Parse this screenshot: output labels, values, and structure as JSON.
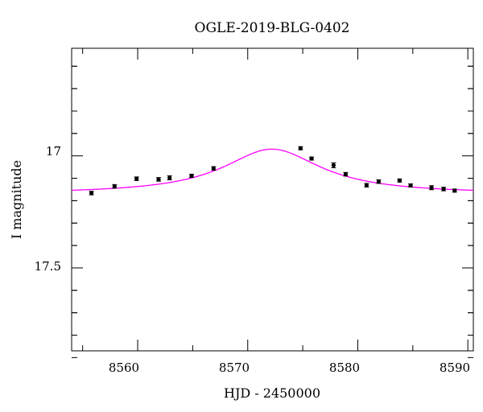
{
  "chart_data": {
    "type": "scatter",
    "title": "OGLE-2019-BLG-0402",
    "xlabel": "HJD - 2450000",
    "ylabel": "I magnitude",
    "xlim": [
      8554,
      8590.5
    ],
    "ylim": [
      17.87,
      16.52
    ],
    "y_inverted": true,
    "x_ticks": [
      "8560",
      "8570",
      "8580",
      "8590"
    ],
    "y_ticks": [
      "17",
      "17.5"
    ],
    "grid": false,
    "model_color": "#ff00ff",
    "point_color": "#000000",
    "model_curve": {
      "name": "",
      "t0": 8572.2,
      "peak_mag": 16.97,
      "baseline_mag": 17.17,
      "tau": 5.2
    },
    "points": [
      {
        "x": 8555.8,
        "y": 17.166,
        "err": 0.008
      },
      {
        "x": 8557.9,
        "y": 17.136,
        "err": 0.008
      },
      {
        "x": 8559.9,
        "y": 17.102,
        "err": 0.008
      },
      {
        "x": 8561.9,
        "y": 17.105,
        "err": 0.008
      },
      {
        "x": 8562.9,
        "y": 17.098,
        "err": 0.009
      },
      {
        "x": 8564.9,
        "y": 17.089,
        "err": 0.007
      },
      {
        "x": 8566.9,
        "y": 17.056,
        "err": 0.008
      },
      {
        "x": 8574.8,
        "y": 16.966,
        "err": 0.007
      },
      {
        "x": 8575.8,
        "y": 17.012,
        "err": 0.007
      },
      {
        "x": 8577.8,
        "y": 17.042,
        "err": 0.011
      },
      {
        "x": 8578.9,
        "y": 17.082,
        "err": 0.008
      },
      {
        "x": 8580.8,
        "y": 17.131,
        "err": 0.008
      },
      {
        "x": 8581.9,
        "y": 17.115,
        "err": 0.008
      },
      {
        "x": 8583.8,
        "y": 17.11,
        "err": 0.007
      },
      {
        "x": 8584.8,
        "y": 17.132,
        "err": 0.007
      },
      {
        "x": 8586.7,
        "y": 17.142,
        "err": 0.009
      },
      {
        "x": 8587.8,
        "y": 17.148,
        "err": 0.008
      },
      {
        "x": 8588.8,
        "y": 17.155,
        "err": 0.007
      }
    ]
  }
}
